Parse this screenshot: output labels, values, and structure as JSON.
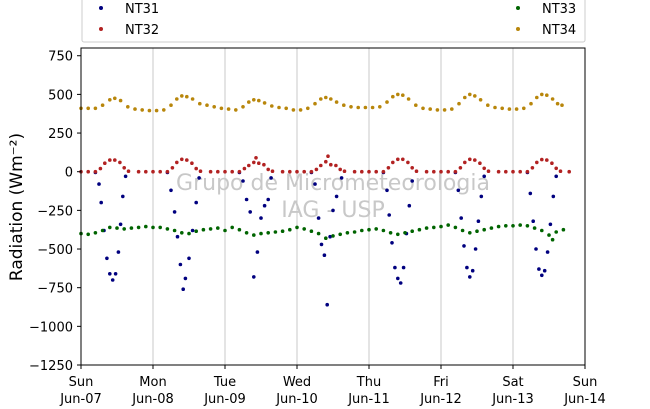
{
  "chart_data": {
    "type": "scatter",
    "title": "",
    "xlabel": "",
    "ylabel": "Radiation (Wm⁻²)",
    "ylim": [
      -1250,
      800
    ],
    "xlim": [
      0,
      7
    ],
    "yticks": [
      750,
      500,
      250,
      0,
      -250,
      -500,
      -750,
      -1000,
      -1250
    ],
    "xticks": [
      {
        "day": "Sun",
        "date": "Jun-07",
        "x": 0
      },
      {
        "day": "Mon",
        "date": "Jun-08",
        "x": 1
      },
      {
        "day": "Tue",
        "date": "Jun-09",
        "x": 2
      },
      {
        "day": "Wed",
        "date": "Jun-10",
        "x": 3
      },
      {
        "day": "Thu",
        "date": "Jun-11",
        "x": 4
      },
      {
        "day": "Fri",
        "date": "Jun-12",
        "x": 5
      },
      {
        "day": "Sat",
        "date": "Jun-13",
        "x": 6
      },
      {
        "day": "Sun",
        "date": "Jun-14",
        "x": 7
      }
    ],
    "grid": "vertical",
    "legend_position": "top",
    "watermark": [
      "Grupo de Micrometeorologia",
      "IAG - USP"
    ],
    "series": [
      {
        "name": "NT31",
        "color": "#00007f",
        "points": [
          [
            0.2,
            -5
          ],
          [
            0.25,
            -80
          ],
          [
            0.28,
            -200
          ],
          [
            0.32,
            -380
          ],
          [
            0.36,
            -560
          ],
          [
            0.4,
            -660
          ],
          [
            0.44,
            -700
          ],
          [
            0.48,
            -660
          ],
          [
            0.52,
            -520
          ],
          [
            0.55,
            -340
          ],
          [
            0.58,
            -160
          ],
          [
            0.62,
            -30
          ],
          [
            1.2,
            -5
          ],
          [
            1.25,
            -120
          ],
          [
            1.3,
            -260
          ],
          [
            1.34,
            -420
          ],
          [
            1.38,
            -600
          ],
          [
            1.42,
            -760
          ],
          [
            1.45,
            -690
          ],
          [
            1.5,
            -560
          ],
          [
            1.55,
            -380
          ],
          [
            1.6,
            -200
          ],
          [
            1.64,
            -40
          ],
          [
            2.2,
            -5
          ],
          [
            2.25,
            -60
          ],
          [
            2.3,
            -180
          ],
          [
            2.35,
            -260
          ],
          [
            2.4,
            -680
          ],
          [
            2.45,
            -520
          ],
          [
            2.5,
            -300
          ],
          [
            2.55,
            -220
          ],
          [
            2.6,
            -180
          ],
          [
            2.64,
            -40
          ],
          [
            3.2,
            -5
          ],
          [
            3.25,
            -80
          ],
          [
            3.3,
            -300
          ],
          [
            3.34,
            -470
          ],
          [
            3.38,
            -540
          ],
          [
            3.42,
            -860
          ],
          [
            3.46,
            -420
          ],
          [
            3.5,
            -250
          ],
          [
            3.55,
            -160
          ],
          [
            3.62,
            -40
          ],
          [
            4.2,
            -5
          ],
          [
            4.25,
            -120
          ],
          [
            4.28,
            -280
          ],
          [
            4.32,
            -460
          ],
          [
            4.36,
            -620
          ],
          [
            4.4,
            -690
          ],
          [
            4.44,
            -720
          ],
          [
            4.48,
            -620
          ],
          [
            4.52,
            -400
          ],
          [
            4.56,
            -220
          ],
          [
            4.6,
            -60
          ],
          [
            5.2,
            -5
          ],
          [
            5.24,
            -120
          ],
          [
            5.28,
            -300
          ],
          [
            5.32,
            -480
          ],
          [
            5.36,
            -620
          ],
          [
            5.4,
            -680
          ],
          [
            5.44,
            -640
          ],
          [
            5.48,
            -500
          ],
          [
            5.52,
            -320
          ],
          [
            5.56,
            -160
          ],
          [
            5.6,
            -30
          ],
          [
            6.2,
            -5
          ],
          [
            6.24,
            -140
          ],
          [
            6.28,
            -320
          ],
          [
            6.32,
            -500
          ],
          [
            6.36,
            -630
          ],
          [
            6.4,
            -670
          ],
          [
            6.44,
            -640
          ],
          [
            6.48,
            -520
          ],
          [
            6.52,
            -340
          ],
          [
            6.56,
            -160
          ],
          [
            6.6,
            -30
          ]
        ]
      },
      {
        "name": "NT32",
        "color": "#b22222",
        "points": [
          [
            0.0,
            0
          ],
          [
            0.1,
            0
          ],
          [
            0.2,
            0
          ],
          [
            0.27,
            20
          ],
          [
            0.33,
            55
          ],
          [
            0.4,
            75
          ],
          [
            0.47,
            75
          ],
          [
            0.54,
            60
          ],
          [
            0.6,
            25
          ],
          [
            0.66,
            3
          ],
          [
            0.8,
            0
          ],
          [
            0.9,
            0
          ],
          [
            1.0,
            0
          ],
          [
            1.1,
            0
          ],
          [
            1.2,
            0
          ],
          [
            1.27,
            25
          ],
          [
            1.33,
            60
          ],
          [
            1.4,
            80
          ],
          [
            1.47,
            75
          ],
          [
            1.54,
            55
          ],
          [
            1.6,
            20
          ],
          [
            1.66,
            3
          ],
          [
            1.8,
            0
          ],
          [
            1.9,
            0
          ],
          [
            2.0,
            0
          ],
          [
            2.1,
            0
          ],
          [
            2.2,
            0
          ],
          [
            2.27,
            20
          ],
          [
            2.33,
            40
          ],
          [
            2.4,
            60
          ],
          [
            2.43,
            90
          ],
          [
            2.47,
            55
          ],
          [
            2.54,
            45
          ],
          [
            2.6,
            15
          ],
          [
            2.66,
            3
          ],
          [
            2.8,
            0
          ],
          [
            2.9,
            0
          ],
          [
            3.0,
            0
          ],
          [
            3.1,
            0
          ],
          [
            3.2,
            0
          ],
          [
            3.27,
            15
          ],
          [
            3.33,
            40
          ],
          [
            3.4,
            65
          ],
          [
            3.43,
            100
          ],
          [
            3.47,
            45
          ],
          [
            3.54,
            40
          ],
          [
            3.6,
            15
          ],
          [
            3.66,
            3
          ],
          [
            3.8,
            0
          ],
          [
            3.9,
            0
          ],
          [
            4.0,
            0
          ],
          [
            4.1,
            0
          ],
          [
            4.2,
            0
          ],
          [
            4.27,
            25
          ],
          [
            4.33,
            60
          ],
          [
            4.4,
            80
          ],
          [
            4.47,
            80
          ],
          [
            4.54,
            60
          ],
          [
            4.6,
            25
          ],
          [
            4.66,
            3
          ],
          [
            4.8,
            0
          ],
          [
            4.9,
            0
          ],
          [
            5.0,
            0
          ],
          [
            5.1,
            0
          ],
          [
            5.2,
            0
          ],
          [
            5.27,
            25
          ],
          [
            5.33,
            60
          ],
          [
            5.4,
            80
          ],
          [
            5.47,
            75
          ],
          [
            5.54,
            55
          ],
          [
            5.6,
            22
          ],
          [
            5.66,
            3
          ],
          [
            5.8,
            0
          ],
          [
            5.9,
            0
          ],
          [
            6.0,
            0
          ],
          [
            6.1,
            0
          ],
          [
            6.2,
            0
          ],
          [
            6.27,
            25
          ],
          [
            6.33,
            60
          ],
          [
            6.4,
            78
          ],
          [
            6.47,
            75
          ],
          [
            6.54,
            55
          ],
          [
            6.6,
            22
          ],
          [
            6.66,
            3
          ],
          [
            6.78,
            0
          ]
        ]
      },
      {
        "name": "NT33",
        "color": "#006400",
        "points": [
          [
            0.0,
            -400
          ],
          [
            0.1,
            -405
          ],
          [
            0.2,
            -395
          ],
          [
            0.3,
            -380
          ],
          [
            0.4,
            -360
          ],
          [
            0.5,
            -365
          ],
          [
            0.6,
            -370
          ],
          [
            0.7,
            -365
          ],
          [
            0.8,
            -360
          ],
          [
            0.9,
            -355
          ],
          [
            1.0,
            -360
          ],
          [
            1.1,
            -360
          ],
          [
            1.2,
            -370
          ],
          [
            1.3,
            -380
          ],
          [
            1.4,
            -395
          ],
          [
            1.5,
            -400
          ],
          [
            1.6,
            -385
          ],
          [
            1.7,
            -375
          ],
          [
            1.8,
            -370
          ],
          [
            1.9,
            -365
          ],
          [
            2.0,
            -380
          ],
          [
            2.1,
            -360
          ],
          [
            2.2,
            -375
          ],
          [
            2.3,
            -395
          ],
          [
            2.4,
            -410
          ],
          [
            2.5,
            -400
          ],
          [
            2.6,
            -395
          ],
          [
            2.7,
            -390
          ],
          [
            2.8,
            -385
          ],
          [
            2.9,
            -375
          ],
          [
            3.0,
            -360
          ],
          [
            3.1,
            -370
          ],
          [
            3.2,
            -385
          ],
          [
            3.3,
            -400
          ],
          [
            3.4,
            -430
          ],
          [
            3.5,
            -415
          ],
          [
            3.6,
            -405
          ],
          [
            3.7,
            -395
          ],
          [
            3.8,
            -390
          ],
          [
            3.9,
            -380
          ],
          [
            4.0,
            -375
          ],
          [
            4.1,
            -370
          ],
          [
            4.2,
            -380
          ],
          [
            4.3,
            -395
          ],
          [
            4.4,
            -405
          ],
          [
            4.5,
            -395
          ],
          [
            4.6,
            -385
          ],
          [
            4.7,
            -375
          ],
          [
            4.8,
            -365
          ],
          [
            4.9,
            -360
          ],
          [
            5.0,
            -355
          ],
          [
            5.1,
            -345
          ],
          [
            5.2,
            -360
          ],
          [
            5.3,
            -380
          ],
          [
            5.4,
            -395
          ],
          [
            5.5,
            -385
          ],
          [
            5.6,
            -375
          ],
          [
            5.7,
            -365
          ],
          [
            5.8,
            -355
          ],
          [
            5.9,
            -350
          ],
          [
            6.0,
            -350
          ],
          [
            6.1,
            -345
          ],
          [
            6.2,
            -350
          ],
          [
            6.3,
            -365
          ],
          [
            6.4,
            -380
          ],
          [
            6.5,
            -410
          ],
          [
            6.55,
            -440
          ],
          [
            6.6,
            -390
          ],
          [
            6.7,
            -375
          ]
        ]
      },
      {
        "name": "NT34",
        "color": "#b8860b",
        "points": [
          [
            0.0,
            410
          ],
          [
            0.1,
            410
          ],
          [
            0.2,
            410
          ],
          [
            0.3,
            430
          ],
          [
            0.4,
            465
          ],
          [
            0.47,
            475
          ],
          [
            0.55,
            460
          ],
          [
            0.65,
            420
          ],
          [
            0.75,
            405
          ],
          [
            0.85,
            400
          ],
          [
            0.95,
            395
          ],
          [
            1.05,
            395
          ],
          [
            1.15,
            400
          ],
          [
            1.25,
            430
          ],
          [
            1.33,
            470
          ],
          [
            1.4,
            490
          ],
          [
            1.47,
            485
          ],
          [
            1.55,
            470
          ],
          [
            1.65,
            440
          ],
          [
            1.75,
            430
          ],
          [
            1.85,
            420
          ],
          [
            1.95,
            410
          ],
          [
            2.05,
            405
          ],
          [
            2.15,
            400
          ],
          [
            2.25,
            420
          ],
          [
            2.33,
            450
          ],
          [
            2.4,
            465
          ],
          [
            2.47,
            460
          ],
          [
            2.55,
            445
          ],
          [
            2.65,
            425
          ],
          [
            2.75,
            415
          ],
          [
            2.85,
            410
          ],
          [
            2.95,
            400
          ],
          [
            3.05,
            400
          ],
          [
            3.15,
            410
          ],
          [
            3.25,
            440
          ],
          [
            3.33,
            470
          ],
          [
            3.4,
            480
          ],
          [
            3.47,
            470
          ],
          [
            3.55,
            450
          ],
          [
            3.65,
            430
          ],
          [
            3.75,
            420
          ],
          [
            3.85,
            415
          ],
          [
            3.95,
            415
          ],
          [
            4.05,
            415
          ],
          [
            4.15,
            420
          ],
          [
            4.25,
            450
          ],
          [
            4.33,
            485
          ],
          [
            4.4,
            500
          ],
          [
            4.47,
            495
          ],
          [
            4.55,
            470
          ],
          [
            4.65,
            430
          ],
          [
            4.75,
            410
          ],
          [
            4.85,
            405
          ],
          [
            4.95,
            400
          ],
          [
            5.05,
            400
          ],
          [
            5.15,
            405
          ],
          [
            5.25,
            440
          ],
          [
            5.33,
            480
          ],
          [
            5.4,
            500
          ],
          [
            5.47,
            490
          ],
          [
            5.55,
            465
          ],
          [
            5.65,
            430
          ],
          [
            5.75,
            415
          ],
          [
            5.85,
            410
          ],
          [
            5.95,
            405
          ],
          [
            6.05,
            405
          ],
          [
            6.15,
            410
          ],
          [
            6.25,
            440
          ],
          [
            6.33,
            480
          ],
          [
            6.4,
            500
          ],
          [
            6.47,
            495
          ],
          [
            6.55,
            470
          ],
          [
            6.62,
            440
          ],
          [
            6.68,
            430
          ]
        ]
      }
    ]
  }
}
